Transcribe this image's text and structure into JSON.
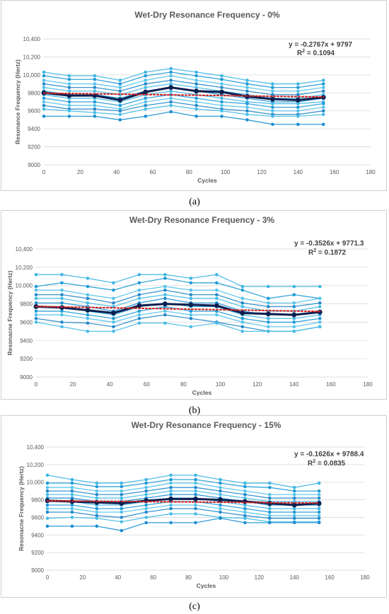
{
  "chart_data": [
    {
      "type": "line",
      "title": "Wet-Dry Resonance Frequency - 0%",
      "xlabel": "Cycles",
      "ylabel": "Resonance Frequency (Hertz)",
      "xlim": [
        0,
        180
      ],
      "ylim": [
        9000,
        10400
      ],
      "xticks": [
        "0",
        "20",
        "40",
        "60",
        "80",
        "100",
        "120",
        "140",
        "160",
        "180"
      ],
      "yticks": [
        "9000",
        "9200",
        "9400",
        "9600",
        "9800",
        "10,000",
        "10,200",
        "10,400"
      ],
      "equation": "y = -0.2767x + 9797",
      "r2_label": "R",
      "r2_value": "= 0.1094",
      "subcaption": "(a)",
      "x": [
        0,
        14,
        28,
        42,
        56,
        70,
        84,
        98,
        112,
        126,
        140,
        154
      ],
      "series": [
        {
          "values": [
            10030,
            9990,
            9990,
            9940,
            10030,
            10070,
            10030,
            9990,
            9940,
            9900,
            9900,
            9940
          ]
        },
        {
          "values": [
            9990,
            9950,
            9950,
            9900,
            9990,
            10030,
            9990,
            9950,
            9900,
            9860,
            9860,
            9900
          ]
        },
        {
          "values": [
            9940,
            9900,
            9900,
            9860,
            9940,
            9990,
            9940,
            9900,
            9860,
            9820,
            9820,
            9860
          ]
        },
        {
          "values": [
            9900,
            9860,
            9860,
            9820,
            9900,
            9940,
            9900,
            9860,
            9820,
            9780,
            9780,
            9820
          ]
        },
        {
          "values": [
            9860,
            9820,
            9820,
            9780,
            9860,
            9900,
            9860,
            9820,
            9780,
            9740,
            9740,
            9780
          ]
        },
        {
          "values": [
            9820,
            9780,
            9780,
            9740,
            9820,
            9860,
            9820,
            9780,
            9740,
            9700,
            9700,
            9740
          ]
        },
        {
          "values": [
            9780,
            9740,
            9740,
            9700,
            9780,
            9820,
            9780,
            9740,
            9700,
            9680,
            9680,
            9700
          ]
        },
        {
          "values": [
            9740,
            9700,
            9700,
            9660,
            9740,
            9780,
            9740,
            9700,
            9680,
            9640,
            9640,
            9680
          ]
        },
        {
          "values": [
            9700,
            9660,
            9660,
            9620,
            9700,
            9740,
            9700,
            9660,
            9640,
            9600,
            9600,
            9640
          ]
        },
        {
          "values": [
            9660,
            9620,
            9620,
            9600,
            9660,
            9700,
            9660,
            9620,
            9600,
            9560,
            9560,
            9600
          ]
        },
        {
          "values": [
            9620,
            9600,
            9580,
            9560,
            9620,
            9660,
            9620,
            9600,
            9560,
            9540,
            9540,
            9560
          ]
        },
        {
          "values": [
            9540,
            9540,
            9540,
            9500,
            9540,
            9590,
            9540,
            9540,
            9500,
            9450,
            9450,
            9450
          ]
        }
      ],
      "mean": [
        9800,
        9770,
        9770,
        9720,
        9810,
        9860,
        9820,
        9810,
        9760,
        9730,
        9720,
        9750
      ]
    },
    {
      "type": "line",
      "title": "Wet-Dry Resonance Frequency - 3%",
      "xlabel": "Cycles",
      "ylabel": "Resonacne Frequency (Hertz)",
      "xlim": [
        0,
        180
      ],
      "ylim": [
        9000,
        10400
      ],
      "xticks": [
        "0",
        "20",
        "40",
        "60",
        "80",
        "100",
        "120",
        "140",
        "160",
        "180"
      ],
      "yticks": [
        "9000",
        "9200",
        "9400",
        "9600",
        "9800",
        "10,000",
        "10,200",
        "10,400"
      ],
      "equation": "y = -0.3526x + 9771.3",
      "r2_label": "R",
      "r2_value": "= 0.1872",
      "subcaption": "(b)",
      "x": [
        0,
        14,
        28,
        42,
        56,
        70,
        84,
        98,
        112,
        126,
        140,
        154
      ],
      "series": [
        {
          "values": [
            10120,
            10120,
            10080,
            10030,
            10120,
            10120,
            10080,
            10120,
            9990,
            9990,
            9990,
            9990
          ]
        },
        {
          "values": [
            9990,
            10030,
            9990,
            9950,
            10030,
            10080,
            10030,
            10030,
            9950,
            9860,
            9900,
            9860
          ]
        },
        {
          "values": [
            9950,
            9950,
            9900,
            9860,
            9950,
            9990,
            9950,
            9950,
            9860,
            9810,
            9810,
            9860
          ]
        },
        {
          "values": [
            9900,
            9900,
            9860,
            9810,
            9900,
            9950,
            9900,
            9900,
            9810,
            9770,
            9770,
            9810
          ]
        },
        {
          "values": [
            9860,
            9860,
            9810,
            9770,
            9860,
            9900,
            9860,
            9860,
            9770,
            9720,
            9720,
            9770
          ]
        },
        {
          "values": [
            9810,
            9810,
            9770,
            9720,
            9810,
            9860,
            9810,
            9810,
            9720,
            9680,
            9680,
            9720
          ]
        },
        {
          "values": [
            9770,
            9770,
            9720,
            9680,
            9770,
            9810,
            9770,
            9770,
            9680,
            9640,
            9640,
            9680
          ]
        },
        {
          "values": [
            9720,
            9720,
            9680,
            9640,
            9720,
            9770,
            9720,
            9720,
            9640,
            9600,
            9600,
            9640
          ]
        },
        {
          "values": [
            9680,
            9680,
            9640,
            9600,
            9680,
            9720,
            9680,
            9680,
            9600,
            9550,
            9550,
            9600
          ]
        },
        {
          "values": [
            9640,
            9600,
            9590,
            9550,
            9640,
            9680,
            9640,
            9600,
            9550,
            9500,
            9500,
            9550
          ]
        },
        {
          "values": [
            9600,
            9550,
            9500,
            9500,
            9590,
            9590,
            9550,
            9590,
            9500,
            9500,
            9500,
            9550
          ]
        }
      ],
      "mean": [
        9770,
        9760,
        9730,
        9700,
        9780,
        9800,
        9790,
        9780,
        9700,
        9690,
        9680,
        9710
      ]
    },
    {
      "type": "line",
      "title": "Wet-Dry Resonance Frequency - 15%",
      "xlabel": "Cycles",
      "ylabel": "Resonacne Frequency (Hertz)",
      "xlim": [
        0,
        180
      ],
      "ylim": [
        9000,
        10400
      ],
      "xticks": [
        "0",
        "20",
        "40",
        "60",
        "80",
        "100",
        "120",
        "140",
        "160",
        "180"
      ],
      "yticks": [
        "9000",
        "9200",
        "9400",
        "9600",
        "9800",
        "10,000",
        "10,200",
        "10,400"
      ],
      "equation": "y = -0.1626x + 9788.4",
      "r2_label": "R",
      "r2_value": "= 0.0835",
      "subcaption": "(c)",
      "x": [
        0,
        14,
        28,
        42,
        56,
        70,
        84,
        98,
        112,
        126,
        140,
        154
      ],
      "series": [
        {
          "values": [
            10080,
            10030,
            9990,
            9990,
            10030,
            10080,
            10080,
            10030,
            9990,
            9990,
            9940,
            9990
          ]
        },
        {
          "values": [
            9990,
            9990,
            9950,
            9950,
            9990,
            10030,
            10030,
            9990,
            9950,
            9940,
            9900,
            9900
          ]
        },
        {
          "values": [
            9940,
            9940,
            9900,
            9900,
            9940,
            9990,
            9990,
            9940,
            9900,
            9860,
            9860,
            9860
          ]
        },
        {
          "values": [
            9900,
            9900,
            9860,
            9860,
            9900,
            9940,
            9940,
            9900,
            9860,
            9820,
            9820,
            9820
          ]
        },
        {
          "values": [
            9860,
            9860,
            9820,
            9820,
            9860,
            9900,
            9900,
            9860,
            9820,
            9780,
            9780,
            9780
          ]
        },
        {
          "values": [
            9820,
            9820,
            9780,
            9780,
            9820,
            9860,
            9860,
            9820,
            9780,
            9740,
            9740,
            9740
          ]
        },
        {
          "values": [
            9780,
            9780,
            9740,
            9740,
            9780,
            9820,
            9820,
            9780,
            9740,
            9700,
            9700,
            9700
          ]
        },
        {
          "values": [
            9740,
            9740,
            9700,
            9700,
            9740,
            9780,
            9780,
            9740,
            9700,
            9660,
            9660,
            9660
          ]
        },
        {
          "values": [
            9700,
            9700,
            9660,
            9660,
            9700,
            9740,
            9740,
            9700,
            9660,
            9620,
            9620,
            9620
          ]
        },
        {
          "values": [
            9660,
            9660,
            9620,
            9600,
            9660,
            9700,
            9700,
            9660,
            9620,
            9590,
            9590,
            9590
          ]
        },
        {
          "values": [
            9590,
            9600,
            9590,
            9550,
            9600,
            9640,
            9640,
            9600,
            9590,
            9550,
            9550,
            9550
          ]
        },
        {
          "values": [
            9500,
            9500,
            9500,
            9450,
            9540,
            9540,
            9540,
            9590,
            9540,
            9540,
            9540,
            9540
          ]
        }
      ],
      "mean": [
        9790,
        9780,
        9770,
        9760,
        9790,
        9810,
        9810,
        9800,
        9780,
        9760,
        9740,
        9760
      ]
    }
  ],
  "colors": {
    "series": [
      "#3fb6e3",
      "#1f9bd6",
      "#56c3ea",
      "#2589c9",
      "#48bde6",
      "#1a8fd0"
    ],
    "mean": "#0b1f4f",
    "trend": "#d42626",
    "grid": "#d9d9d9",
    "text": "#595959"
  }
}
